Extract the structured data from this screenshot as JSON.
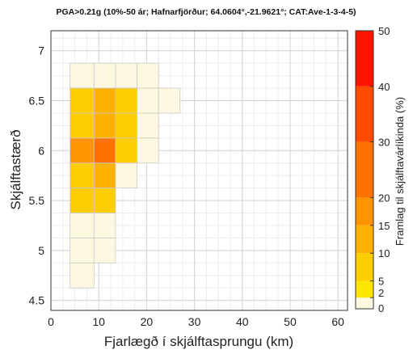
{
  "chart_data": {
    "type": "heatmap",
    "title": "PGA>0.21g (10%-50 ár; Hafnarfjörður; 64.0604°,-21.9621°; CAT:Ave-1-3-4-5)",
    "xlabel": "Fjarlægð í skjálftasprungu (km)",
    "ylabel": "Skjálftastærð",
    "colorbar_label": "Framlag til skjálftavárlíkinda (%)",
    "xlim": [
      0,
      62
    ],
    "ylim": [
      4.4,
      7.2
    ],
    "xticks": [
      0,
      10,
      20,
      30,
      40,
      50,
      60
    ],
    "yticks": [
      4.5,
      5,
      5.5,
      6,
      6.5,
      7
    ],
    "bin_width_km": 5,
    "bin_height_mag": 0.25,
    "grid": true,
    "colorbar": {
      "bounds": [
        0,
        2,
        5,
        10,
        15,
        20,
        30,
        40,
        50
      ],
      "colors": [
        "#fdf8e0",
        "#ffe600",
        "#ffce00",
        "#ffb100",
        "#ff9400",
        "#ff7200",
        "#ff4a00",
        "#ff1400"
      ],
      "tick_labels": [
        "0",
        "2",
        "5",
        "10",
        "15",
        "20",
        "30",
        "40",
        "50"
      ]
    },
    "cells": [
      {
        "x": [
          4,
          9
        ],
        "y": [
          6.625,
          6.875
        ],
        "value": 1
      },
      {
        "x": [
          9,
          13.5
        ],
        "y": [
          6.625,
          6.875
        ],
        "value": 1
      },
      {
        "x": [
          13.5,
          18
        ],
        "y": [
          6.625,
          6.875
        ],
        "value": 1
      },
      {
        "x": [
          18,
          22.5
        ],
        "y": [
          6.625,
          6.875
        ],
        "value": 1
      },
      {
        "x": [
          4,
          9
        ],
        "y": [
          6.375,
          6.625
        ],
        "value": 6
      },
      {
        "x": [
          9,
          13.5
        ],
        "y": [
          6.375,
          6.625
        ],
        "value": 12
      },
      {
        "x": [
          13.5,
          18
        ],
        "y": [
          6.375,
          6.625
        ],
        "value": 5
      },
      {
        "x": [
          18,
          22.5
        ],
        "y": [
          6.375,
          6.625
        ],
        "value": 1
      },
      {
        "x": [
          22.5,
          27
        ],
        "y": [
          6.375,
          6.625
        ],
        "value": 1
      },
      {
        "x": [
          4,
          9
        ],
        "y": [
          6.125,
          6.375
        ],
        "value": 5
      },
      {
        "x": [
          9,
          13.5
        ],
        "y": [
          6.125,
          6.375
        ],
        "value": 12
      },
      {
        "x": [
          13.5,
          18
        ],
        "y": [
          6.125,
          6.375
        ],
        "value": 5
      },
      {
        "x": [
          18,
          22.5
        ],
        "y": [
          6.125,
          6.375
        ],
        "value": 1
      },
      {
        "x": [
          4,
          9
        ],
        "y": [
          5.875,
          6.125
        ],
        "value": 16
      },
      {
        "x": [
          9,
          13.5
        ],
        "y": [
          5.875,
          6.125
        ],
        "value": 22
      },
      {
        "x": [
          13.5,
          18
        ],
        "y": [
          5.875,
          6.125
        ],
        "value": 6
      },
      {
        "x": [
          18,
          22.5
        ],
        "y": [
          5.875,
          6.125
        ],
        "value": 1
      },
      {
        "x": [
          4,
          9
        ],
        "y": [
          5.625,
          5.875
        ],
        "value": 6
      },
      {
        "x": [
          9,
          13.5
        ],
        "y": [
          5.625,
          5.875
        ],
        "value": 12
      },
      {
        "x": [
          13.5,
          18
        ],
        "y": [
          5.625,
          5.875
        ],
        "value": 1
      },
      {
        "x": [
          4,
          9
        ],
        "y": [
          5.375,
          5.625
        ],
        "value": 5
      },
      {
        "x": [
          9,
          13.5
        ],
        "y": [
          5.375,
          5.625
        ],
        "value": 5
      },
      {
        "x": [
          4,
          9
        ],
        "y": [
          5.125,
          5.375
        ],
        "value": 1
      },
      {
        "x": [
          9,
          13.5
        ],
        "y": [
          5.125,
          5.375
        ],
        "value": 1
      },
      {
        "x": [
          4,
          9
        ],
        "y": [
          4.875,
          5.125
        ],
        "value": 1
      },
      {
        "x": [
          9,
          13.5
        ],
        "y": [
          4.875,
          5.125
        ],
        "value": 1
      },
      {
        "x": [
          4,
          9
        ],
        "y": [
          4.625,
          4.875
        ],
        "value": 1
      }
    ]
  }
}
